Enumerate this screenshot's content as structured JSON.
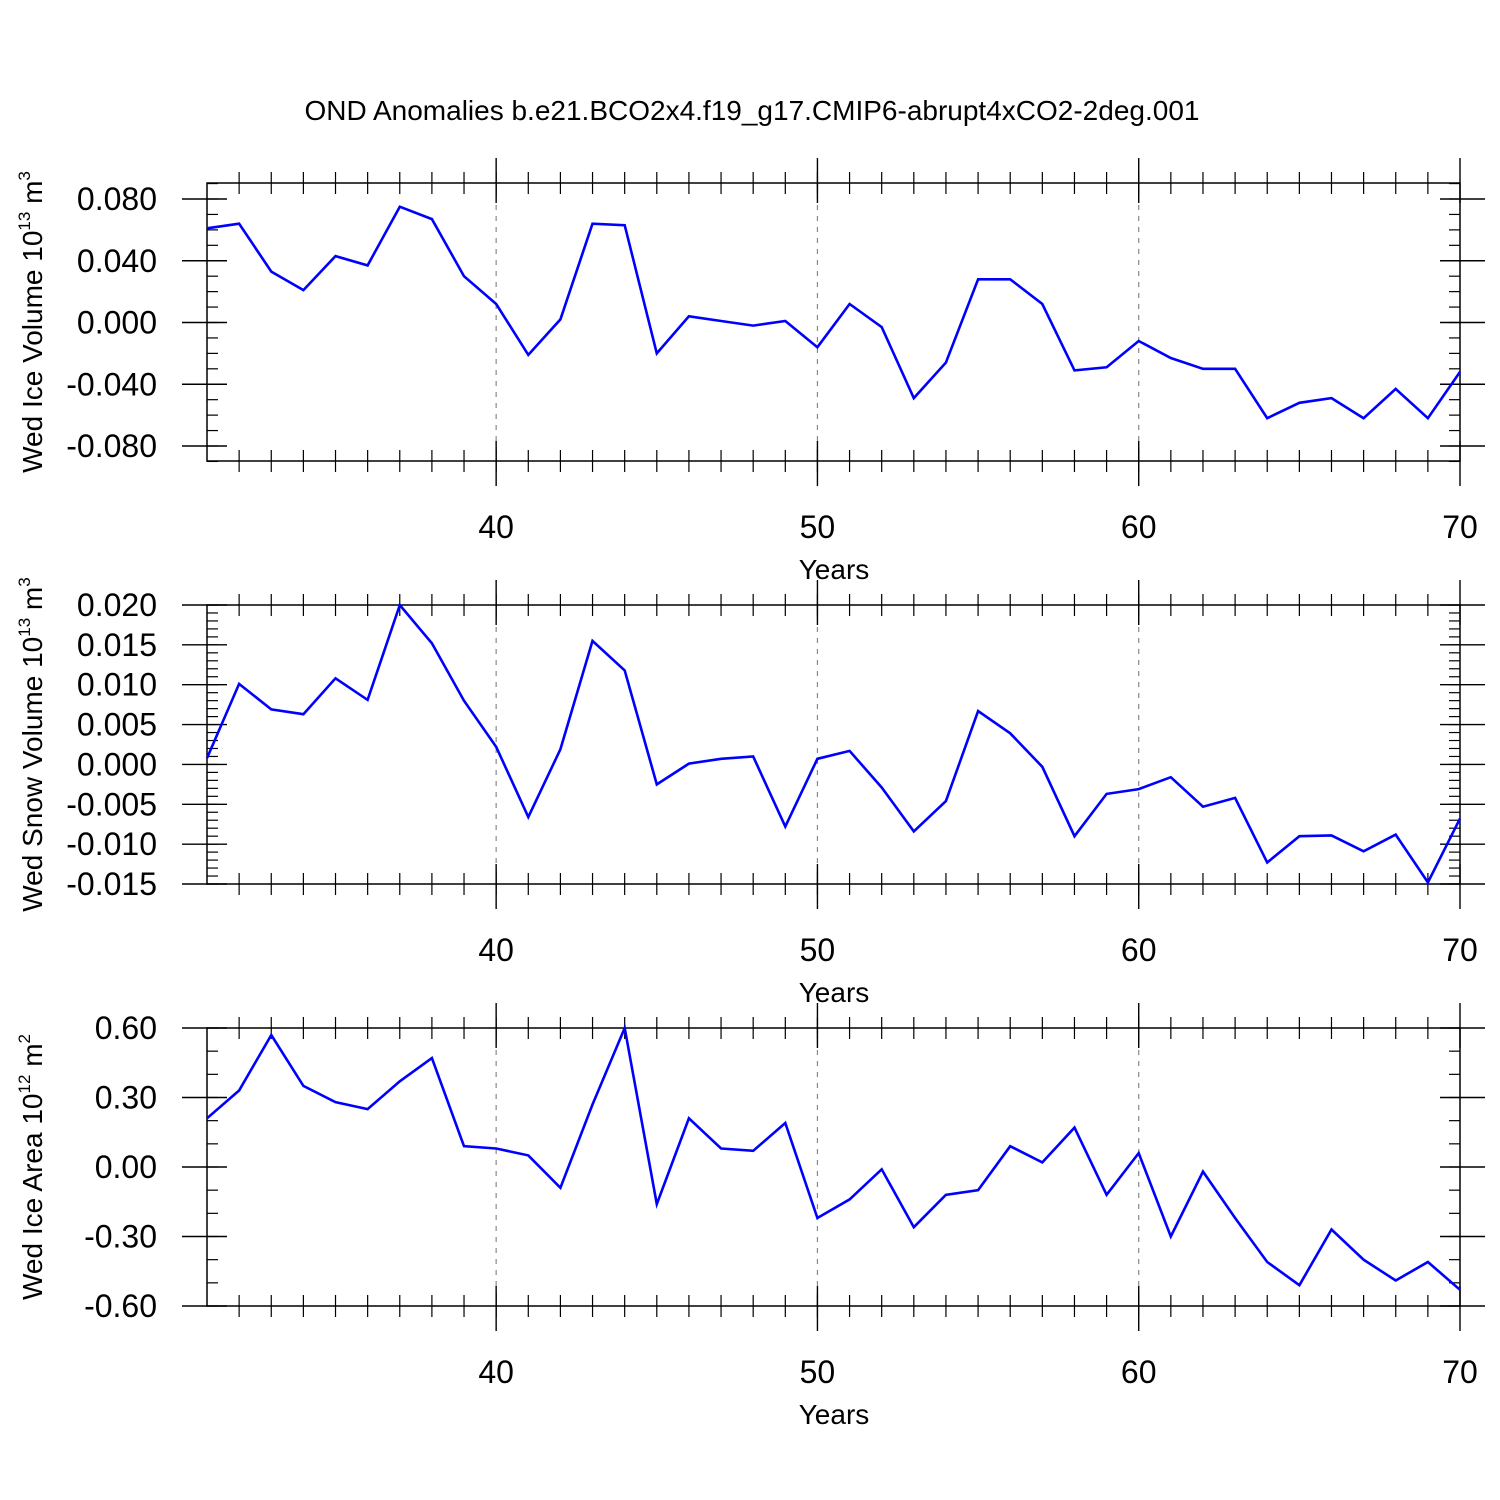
{
  "title": "OND Anomalies b.e21.BCO2x4.f19_g17.CMIP6-abrupt4xCO2-2deg.001",
  "colors": {
    "line": "#0000ff",
    "axis": "#000000",
    "grid": "#888888"
  },
  "chart_data": [
    {
      "type": "line",
      "ylabel": {
        "text": "Wed Ice Volume 10",
        "sup1": "13",
        "unit": " m",
        "sup2": "3"
      },
      "xlabel": "Years",
      "xlim": [
        31,
        70
      ],
      "ylim": [
        -0.09,
        0.09
      ],
      "yticks": [
        0.08,
        0.04,
        0.0,
        -0.04,
        -0.08
      ],
      "yticklabels": [
        "0.080",
        "0.040",
        "0.000",
        "-0.040",
        "-0.080"
      ],
      "xticks": [
        40,
        50,
        60,
        70
      ],
      "xticklabels": [
        "40",
        "50",
        "60",
        "70"
      ],
      "grid": "vertical dashed at x=40,50,60",
      "x": [
        31,
        32,
        33,
        34,
        35,
        36,
        37,
        38,
        39,
        40,
        41,
        42,
        43,
        44,
        45,
        46,
        47,
        48,
        49,
        50,
        51,
        52,
        53,
        54,
        55,
        56,
        57,
        58,
        59,
        60,
        61,
        62,
        63,
        64,
        65,
        66,
        67,
        68,
        69,
        70
      ],
      "values": [
        0.061,
        0.064,
        0.033,
        0.021,
        0.043,
        0.037,
        0.075,
        0.067,
        0.03,
        0.012,
        -0.021,
        0.002,
        0.064,
        0.063,
        -0.02,
        0.004,
        0.001,
        -0.002,
        0.001,
        -0.016,
        0.012,
        -0.003,
        -0.049,
        -0.026,
        0.028,
        0.028,
        0.012,
        -0.031,
        -0.029,
        -0.012,
        -0.023,
        -0.03,
        -0.03,
        -0.062,
        -0.052,
        -0.049,
        -0.062,
        -0.043,
        -0.062,
        -0.032
      ]
    },
    {
      "type": "line",
      "ylabel": {
        "text": "Wed Snow Volume 10",
        "sup1": "13",
        "unit": " m",
        "sup2": "3"
      },
      "xlabel": "Years",
      "xlim": [
        31,
        70
      ],
      "ylim": [
        -0.015,
        0.02
      ],
      "yticks": [
        0.02,
        0.015,
        0.01,
        0.005,
        0.0,
        -0.005,
        -0.01,
        -0.015
      ],
      "yticklabels": [
        "0.020",
        "0.015",
        "0.010",
        "0.005",
        "0.000",
        "-0.005",
        "-0.010",
        "-0.015"
      ],
      "xticks": [
        40,
        50,
        60,
        70
      ],
      "xticklabels": [
        "40",
        "50",
        "60",
        "70"
      ],
      "grid": "vertical dashed at x=40,50,60",
      "x": [
        31,
        32,
        33,
        34,
        35,
        36,
        37,
        38,
        39,
        40,
        41,
        42,
        43,
        44,
        45,
        46,
        47,
        48,
        49,
        50,
        51,
        52,
        53,
        54,
        55,
        56,
        57,
        58,
        59,
        60,
        61,
        62,
        63,
        64,
        65,
        66,
        67,
        68,
        69,
        70
      ],
      "values": [
        0.0008,
        0.0101,
        0.0069,
        0.0063,
        0.0108,
        0.0081,
        0.02,
        0.0152,
        0.008,
        0.0022,
        -0.0066,
        0.0019,
        0.0155,
        0.0118,
        -0.0025,
        0.0001,
        0.0007,
        0.001,
        -0.0078,
        0.0007,
        0.0017,
        -0.0029,
        -0.0084,
        -0.0046,
        0.0067,
        0.0039,
        -0.0003,
        -0.009,
        -0.0037,
        -0.0031,
        -0.0016,
        -0.0053,
        -0.0042,
        -0.0123,
        -0.009,
        -0.0089,
        -0.0109,
        -0.0088,
        -0.0148,
        -0.0068
      ]
    },
    {
      "type": "line",
      "ylabel": {
        "text": "Wed Ice Area 10",
        "sup1": "12",
        "unit": " m",
        "sup2": "2"
      },
      "xlabel": "Years",
      "xlim": [
        31,
        70
      ],
      "ylim": [
        -0.6,
        0.6
      ],
      "yticks": [
        0.6,
        0.3,
        0.0,
        -0.3,
        -0.6
      ],
      "yticklabels": [
        "0.60",
        "0.30",
        "0.00",
        "-0.30",
        "-0.60"
      ],
      "xticks": [
        40,
        50,
        60,
        70
      ],
      "xticklabels": [
        "40",
        "50",
        "60",
        "70"
      ],
      "grid": "vertical dashed at x=40,50,60",
      "x": [
        31,
        32,
        33,
        34,
        35,
        36,
        37,
        38,
        39,
        40,
        41,
        42,
        43,
        44,
        45,
        46,
        47,
        48,
        49,
        50,
        51,
        52,
        53,
        54,
        55,
        56,
        57,
        58,
        59,
        60,
        61,
        62,
        63,
        64,
        65,
        66,
        67,
        68,
        69,
        70
      ],
      "values": [
        0.21,
        0.33,
        0.57,
        0.35,
        0.28,
        0.25,
        0.37,
        0.47,
        0.09,
        0.08,
        0.05,
        -0.09,
        0.27,
        0.6,
        -0.16,
        0.21,
        0.08,
        0.07,
        0.19,
        -0.22,
        -0.14,
        -0.01,
        -0.26,
        -0.12,
        -0.1,
        0.09,
        0.02,
        0.17,
        -0.12,
        0.06,
        -0.3,
        -0.02,
        -0.22,
        -0.41,
        -0.51,
        -0.27,
        -0.4,
        -0.49,
        -0.41,
        -0.53
      ]
    }
  ]
}
